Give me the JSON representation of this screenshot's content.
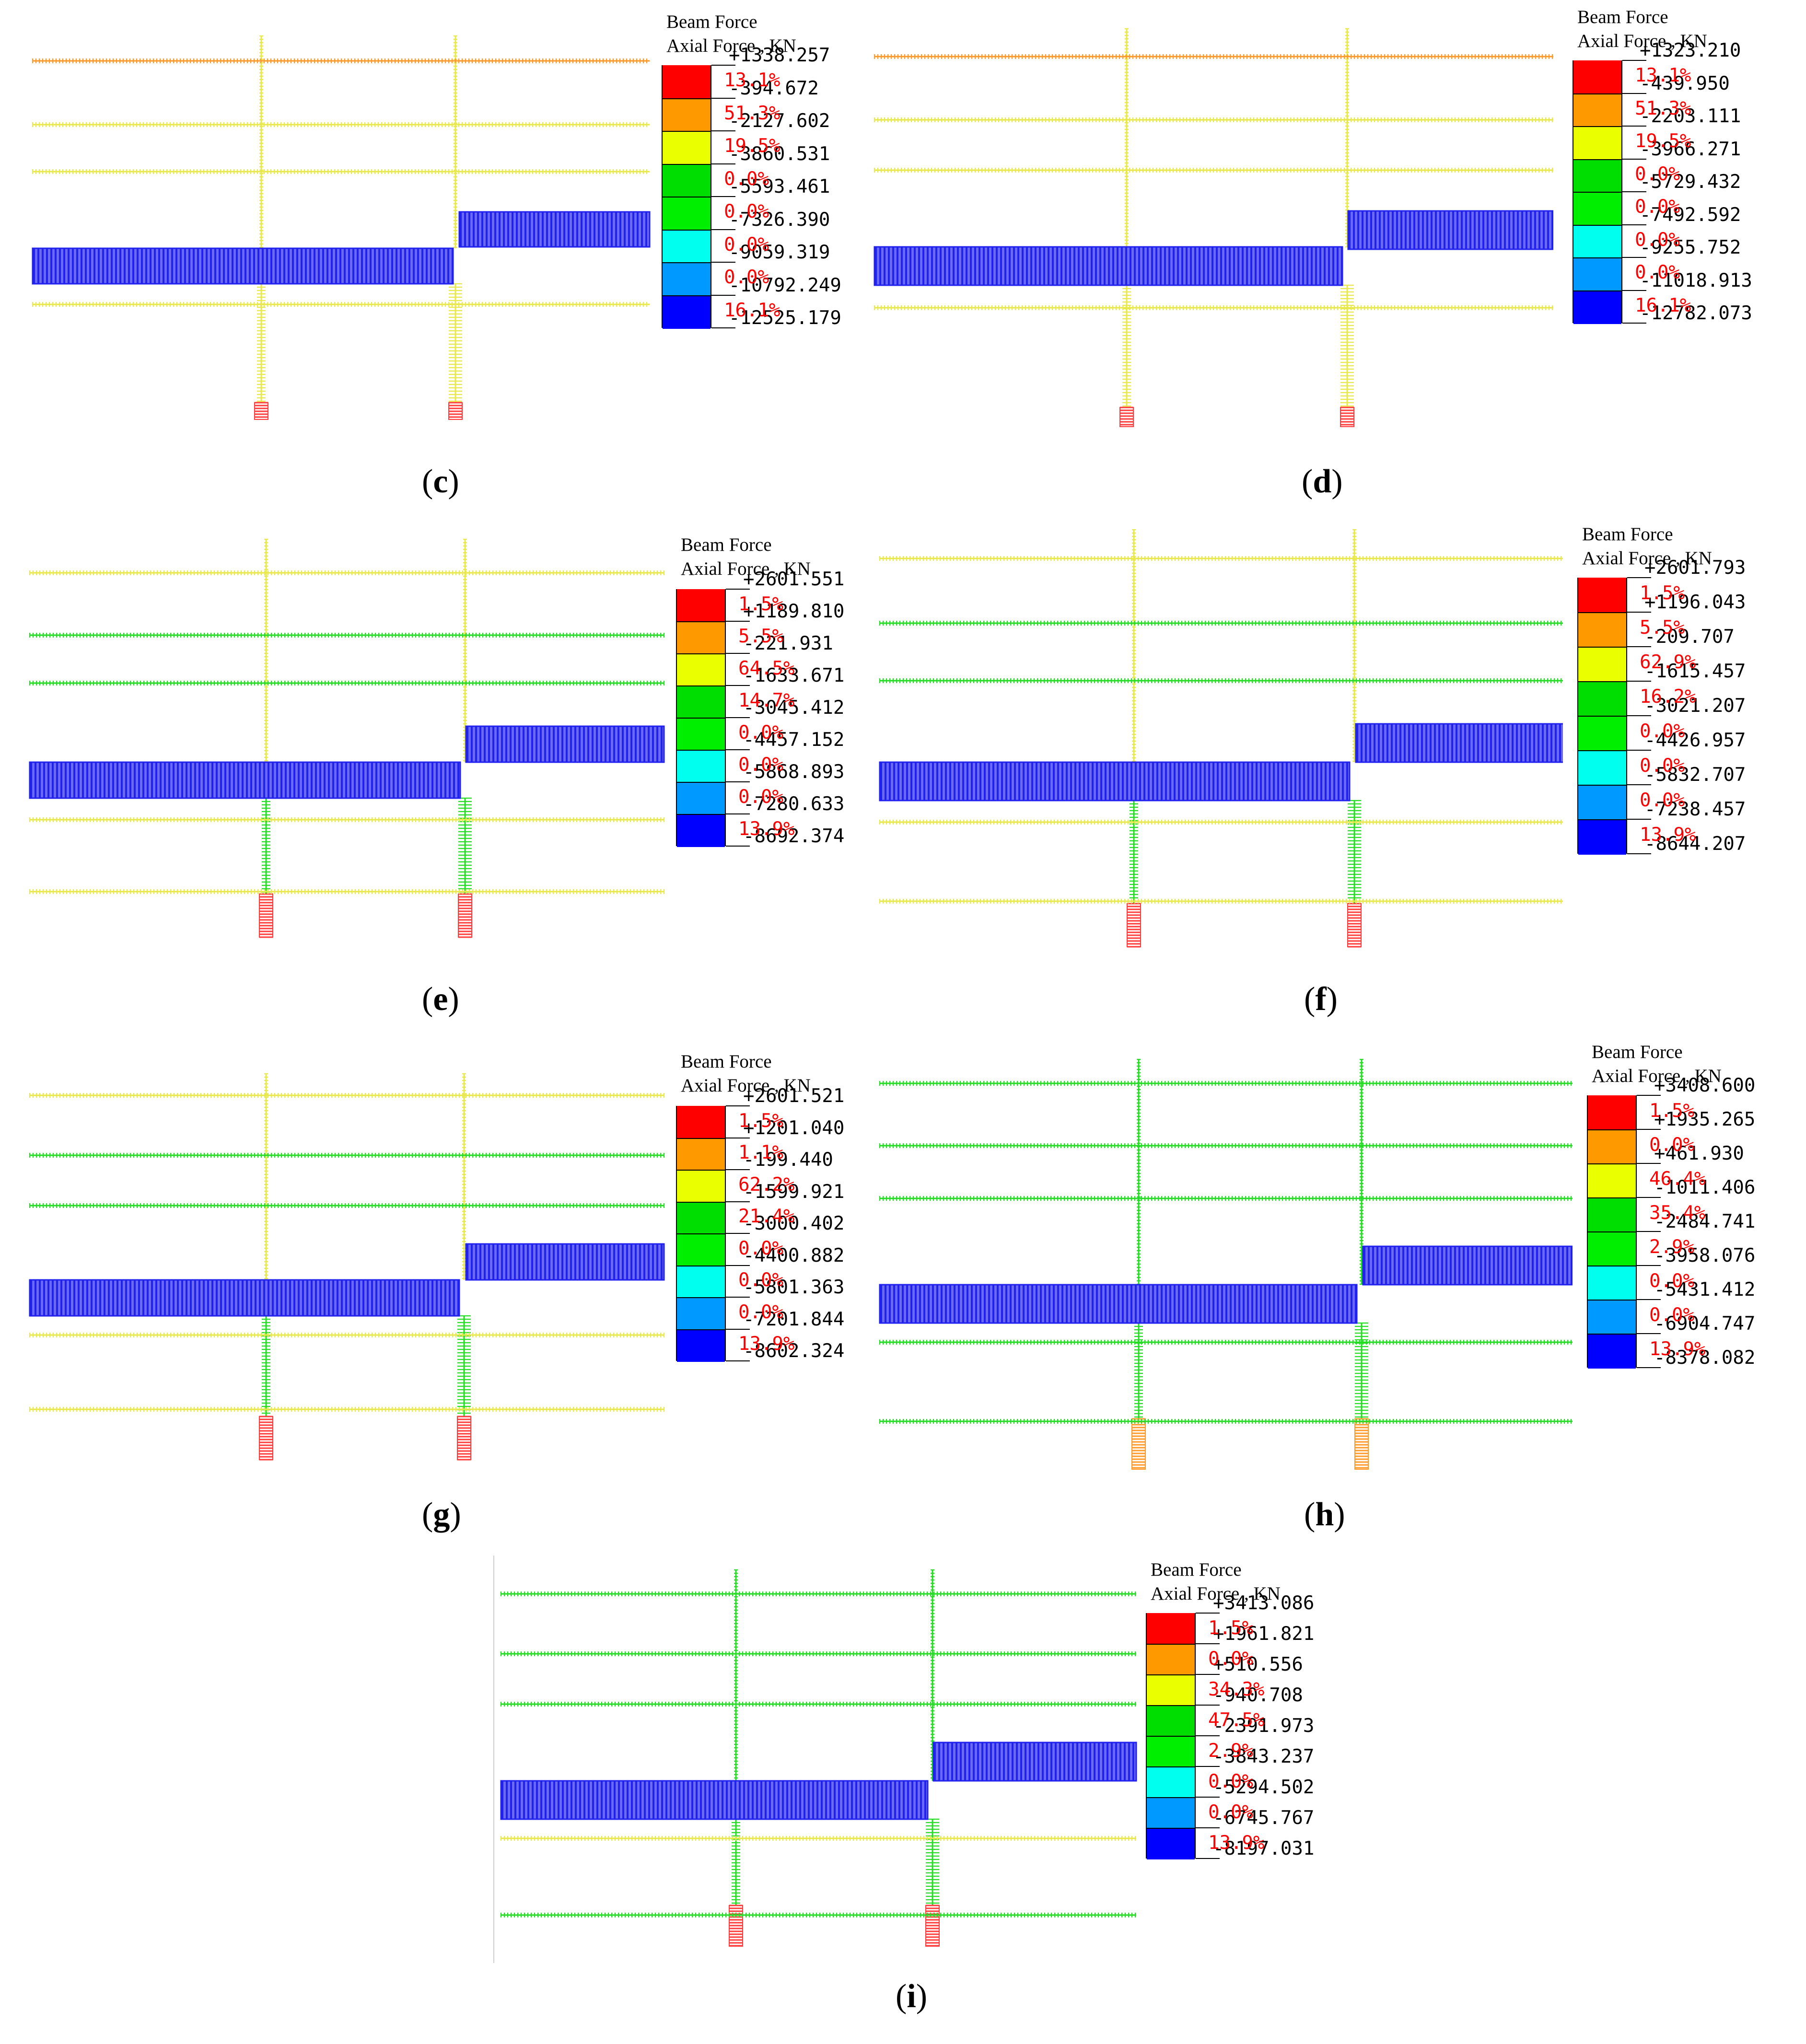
{
  "figure": {
    "legend_colors": [
      "#ff0000",
      "#ff9900",
      "#eaff00",
      "#00dd00",
      "#00ee00",
      "#00ffee",
      "#0099ff",
      "#0000ff"
    ],
    "member_colors": {
      "compression": "#2222ee",
      "red": "#ff3b3b",
      "orange": "#ff9a2a",
      "yellow": "#e8e84a",
      "green": "#22dd22"
    },
    "panels": [
      {
        "id": "c",
        "caption": {
          "open": "(",
          "letter": "c",
          "close": ")"
        },
        "legend": {
          "title_line1": "Beam Force",
          "title_line2": "Axial Force , KN",
          "values": [
            "+1338.257",
            "-394.672",
            "-2127.602",
            "-3860.531",
            "-5593.461",
            "-7326.390",
            "-9059.319",
            "-10792.249",
            "-12525.179"
          ],
          "percentages": [
            "13.1%",
            "51.3%",
            "19.5%",
            "0.0%",
            "0.0%",
            "0.0%",
            "0.0%",
            "16.1%"
          ]
        },
        "beam_colors": [
          "orange",
          "yellow",
          "yellow",
          "yellow"
        ],
        "column_colors": {
          "upper": "yellow",
          "lower": "yellow",
          "base": "red"
        }
      },
      {
        "id": "d",
        "caption": {
          "open": "(",
          "letter": "d",
          "close": ")"
        },
        "legend": {
          "title_line1": "Beam Force",
          "title_line2": "Axial Force , KN",
          "values": [
            "+1323.210",
            "-439.950",
            "-2203.111",
            "-3966.271",
            "-5729.432",
            "-7492.592",
            "-9255.752",
            "-11018.913",
            "-12782.073"
          ],
          "percentages": [
            "13.1%",
            "51.3%",
            "19.5%",
            "0.0%",
            "0.0%",
            "0.0%",
            "0.0%",
            "16.1%"
          ]
        },
        "beam_colors": [
          "orange",
          "yellow",
          "yellow",
          "yellow"
        ],
        "column_colors": {
          "upper": "yellow",
          "lower": "yellow",
          "base": "red"
        }
      },
      {
        "id": "e",
        "caption": {
          "open": "(",
          "letter": "e",
          "close": ")"
        },
        "legend": {
          "title_line1": "Beam Force",
          "title_line2": "Axial Force , KN",
          "values": [
            "+2601.551",
            "+1189.810",
            "-221.931",
            "-1633.671",
            "-3045.412",
            "-4457.152",
            "-5868.893",
            "-7280.633",
            "-8692.374"
          ],
          "percentages": [
            "1.5%",
            "5.5%",
            "64.5%",
            "14.7%",
            "0.0%",
            "0.0%",
            "0.0%",
            "13.9%"
          ]
        },
        "beam_colors": [
          "yellow",
          "green",
          "green",
          "yellow",
          "yellow"
        ],
        "column_colors": {
          "upper": "yellow",
          "lower": "green",
          "base": "red"
        }
      },
      {
        "id": "f",
        "caption": {
          "open": "(",
          "letter": "f",
          "close": ")"
        },
        "legend": {
          "title_line1": "Beam Force",
          "title_line2": "Axial Force , KN",
          "values": [
            "+2601.793",
            "+1196.043",
            "-209.707",
            "-1615.457",
            "-3021.207",
            "-4426.957",
            "-5832.707",
            "-7238.457",
            "-8644.207"
          ],
          "percentages": [
            "1.5%",
            "5.5%",
            "62.9%",
            "16.2%",
            "0.0%",
            "0.0%",
            "0.0%",
            "13.9%"
          ]
        },
        "beam_colors": [
          "yellow",
          "green",
          "green",
          "yellow",
          "yellow"
        ],
        "column_colors": {
          "upper": "yellow",
          "lower": "green",
          "base": "red"
        }
      },
      {
        "id": "g",
        "caption": {
          "open": "(",
          "letter": "g",
          "close": ")"
        },
        "legend": {
          "title_line1": "Beam Force",
          "title_line2": "Axial Force , KN",
          "values": [
            "+2601.521",
            "+1201.040",
            "-199.440",
            "-1599.921",
            "-3000.402",
            "-4400.882",
            "-5801.363",
            "-7201.844",
            "-8602.324"
          ],
          "percentages": [
            "1.5%",
            "1.1%",
            "62.2%",
            "21.4%",
            "0.0%",
            "0.0%",
            "0.0%",
            "13.9%"
          ]
        },
        "beam_colors": [
          "yellow",
          "green",
          "green",
          "yellow",
          "yellow"
        ],
        "column_colors": {
          "upper": "yellow",
          "lower": "green",
          "base": "red"
        }
      },
      {
        "id": "h",
        "caption": {
          "open": "(",
          "letter": "h",
          "close": ")"
        },
        "legend": {
          "title_line1": "Beam Force",
          "title_line2": "Axial Force , KN",
          "values": [
            "+3408.600",
            "+1935.265",
            "+461.930",
            "-1011.406",
            "-2484.741",
            "-3958.076",
            "-5431.412",
            "-6904.747",
            "-8378.082"
          ],
          "percentages": [
            "1.5%",
            "0.0%",
            "46.4%",
            "35.4%",
            "2.9%",
            "0.0%",
            "0.0%",
            "13.9%"
          ]
        },
        "beam_colors": [
          "green",
          "green",
          "green",
          "green",
          "green"
        ],
        "column_colors": {
          "upper": "green",
          "lower": "green",
          "base": "orange"
        }
      },
      {
        "id": "i",
        "caption": {
          "open": "(",
          "letter": "i",
          "close": ")"
        },
        "legend": {
          "title_line1": "Beam Force",
          "title_line2": "Axial Force , KN",
          "values": [
            "+3413.086",
            "+1961.821",
            "+510.556",
            "-940.708",
            "-2391.973",
            "-3843.237",
            "-5294.502",
            "-6745.767",
            "-8197.031"
          ],
          "percentages": [
            "1.5%",
            "0.0%",
            "34.3%",
            "47.5%",
            "2.9%",
            "0.0%",
            "0.0%",
            "13.9%"
          ]
        },
        "beam_colors": [
          "green",
          "green",
          "green",
          "yellow",
          "green"
        ],
        "column_colors": {
          "upper": "green",
          "lower": "green",
          "base": "red"
        }
      }
    ]
  }
}
